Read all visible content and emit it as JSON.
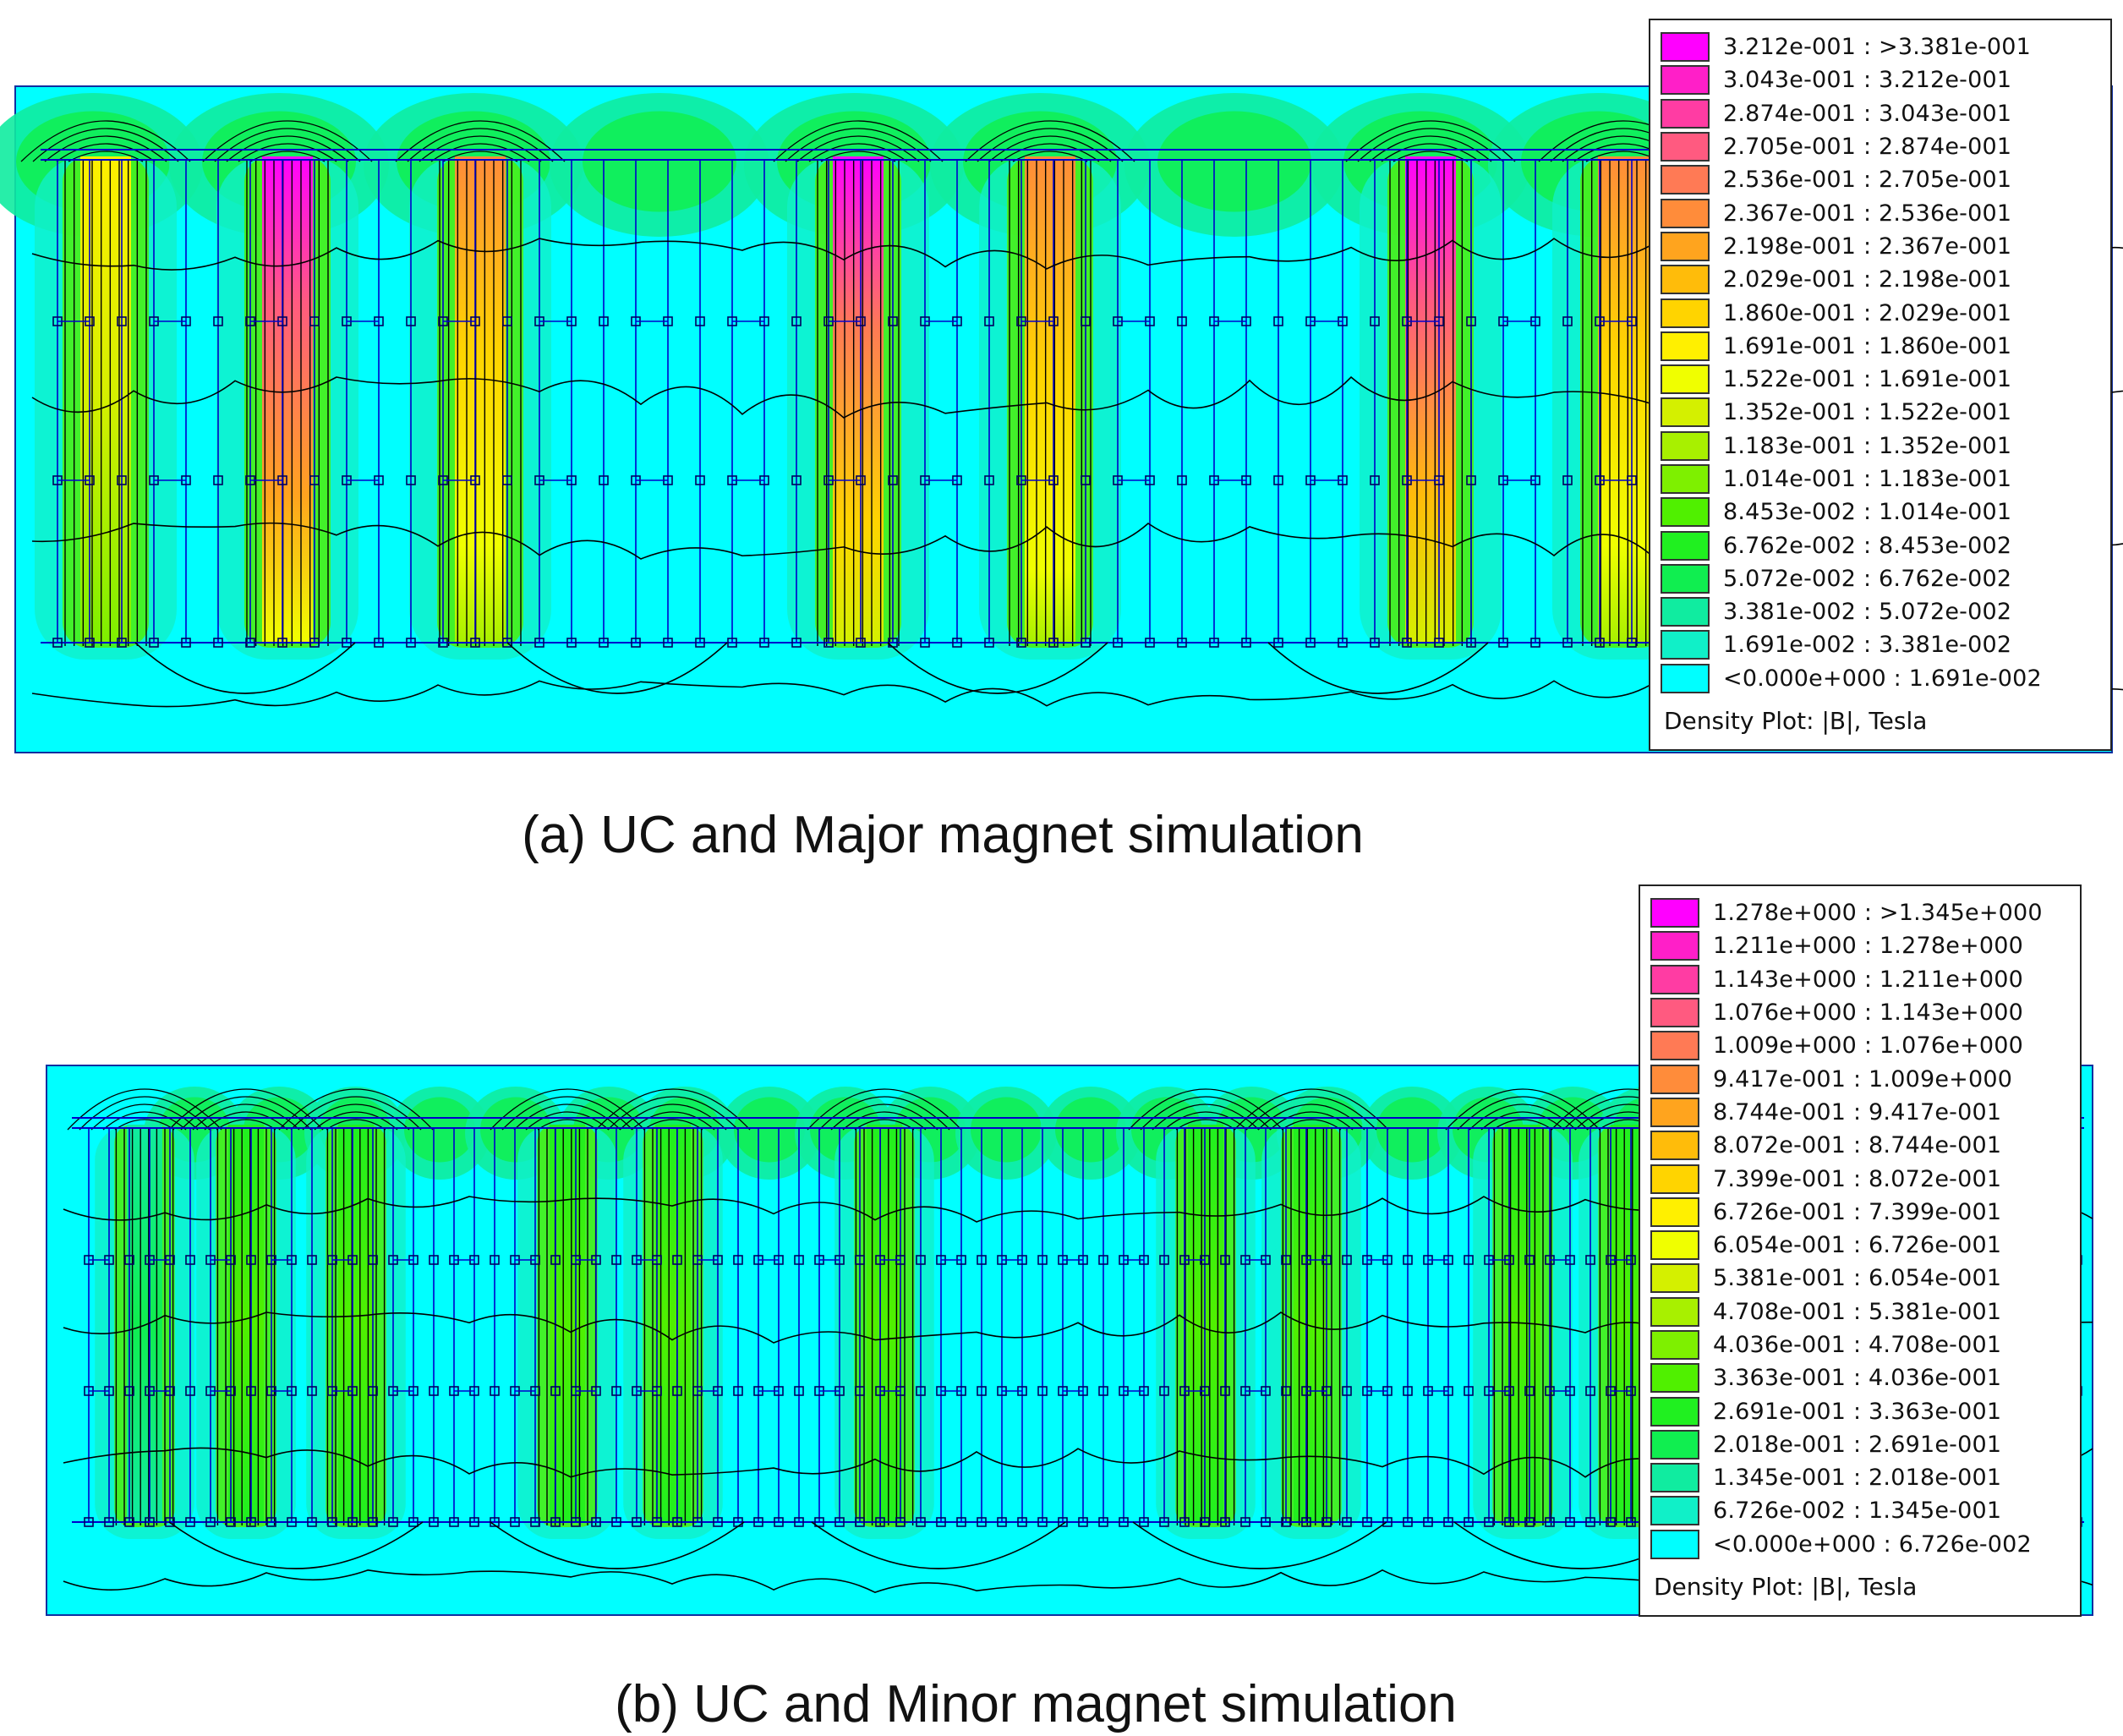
{
  "figure": {
    "panels": [
      {
        "id": "a",
        "caption": "(a) UC and Major magnet simulation",
        "plot_title": "Density Plot: |B|, Tesla",
        "legend": [
          {
            "label": "3.212e-001 : >3.381e-001",
            "color": "#ff00ff"
          },
          {
            "label": "3.043e-001 : 3.212e-001",
            "color": "#ff1fc8"
          },
          {
            "label": "2.874e-001 : 3.043e-001",
            "color": "#ff3ca3"
          },
          {
            "label": "2.705e-001 : 2.874e-001",
            "color": "#ff5a80"
          },
          {
            "label": "2.536e-001 : 2.705e-001",
            "color": "#ff7a55"
          },
          {
            "label": "2.367e-001 : 2.536e-001",
            "color": "#ff8c3a"
          },
          {
            "label": "2.198e-001 : 2.367e-001",
            "color": "#ffa41e"
          },
          {
            "label": "2.029e-001 : 2.198e-001",
            "color": "#ffbc0a"
          },
          {
            "label": "1.860e-001 : 2.029e-001",
            "color": "#ffd400"
          },
          {
            "label": "1.691e-001 : 1.860e-001",
            "color": "#fff000"
          },
          {
            "label": "1.522e-001 : 1.691e-001",
            "color": "#f0ff00"
          },
          {
            "label": "1.352e-001 : 1.522e-001",
            "color": "#d4f000"
          },
          {
            "label": "1.183e-001 : 1.352e-001",
            "color": "#a8f000"
          },
          {
            "label": "1.014e-001 : 1.183e-001",
            "color": "#7ef000"
          },
          {
            "label": "8.453e-002 : 1.014e-001",
            "color": "#50f000"
          },
          {
            "label": "6.762e-002 : 8.453e-002",
            "color": "#20f020"
          },
          {
            "label": "5.072e-002 : 6.762e-002",
            "color": "#10ee50"
          },
          {
            "label": "3.381e-002 : 5.072e-002",
            "color": "#10eca0"
          },
          {
            "label": "1.691e-002 : 3.381e-002",
            "color": "#10f0c8"
          },
          {
            "label": "<0.000e+000 : 1.691e-002",
            "color": "#00ffff"
          }
        ]
      },
      {
        "id": "b",
        "caption": "(b) UC and Minor magnet simulation",
        "plot_title": "Density Plot: |B|, Tesla",
        "legend": [
          {
            "label": "1.278e+000 : >1.345e+000",
            "color": "#ff00ff"
          },
          {
            "label": "1.211e+000 : 1.278e+000",
            "color": "#ff1fc8"
          },
          {
            "label": "1.143e+000 : 1.211e+000",
            "color": "#ff3ca3"
          },
          {
            "label": "1.076e+000 : 1.143e+000",
            "color": "#ff5a80"
          },
          {
            "label": "1.009e+000 : 1.076e+000",
            "color": "#ff7a55"
          },
          {
            "label": "9.417e-001 : 1.009e+000",
            "color": "#ff8c3a"
          },
          {
            "label": "8.744e-001 : 9.417e-001",
            "color": "#ffa41e"
          },
          {
            "label": "8.072e-001 : 8.744e-001",
            "color": "#ffbc0a"
          },
          {
            "label": "7.399e-001 : 8.072e-001",
            "color": "#ffd400"
          },
          {
            "label": "6.726e-001 : 7.399e-001",
            "color": "#fff000"
          },
          {
            "label": "6.054e-001 : 6.726e-001",
            "color": "#f0ff00"
          },
          {
            "label": "5.381e-001 : 6.054e-001",
            "color": "#d4f000"
          },
          {
            "label": "4.708e-001 : 5.381e-001",
            "color": "#a8f000"
          },
          {
            "label": "4.036e-001 : 4.708e-001",
            "color": "#7ef000"
          },
          {
            "label": "3.363e-001 : 4.036e-001",
            "color": "#50f000"
          },
          {
            "label": "2.691e-001 : 3.363e-001",
            "color": "#20f020"
          },
          {
            "label": "2.018e-001 : 2.691e-001",
            "color": "#10ee50"
          },
          {
            "label": "1.345e-001 : 2.018e-001",
            "color": "#10eca0"
          },
          {
            "label": "6.726e-002 : 1.345e-001",
            "color": "#10f0c8"
          },
          {
            "label": "<0.000e+000 : 6.726e-002",
            "color": "#00ffff"
          }
        ]
      }
    ],
    "colors": {
      "background_field": "#00ffff",
      "mesh_lines": "#0000cc",
      "contour_lines": "#000000"
    }
  }
}
